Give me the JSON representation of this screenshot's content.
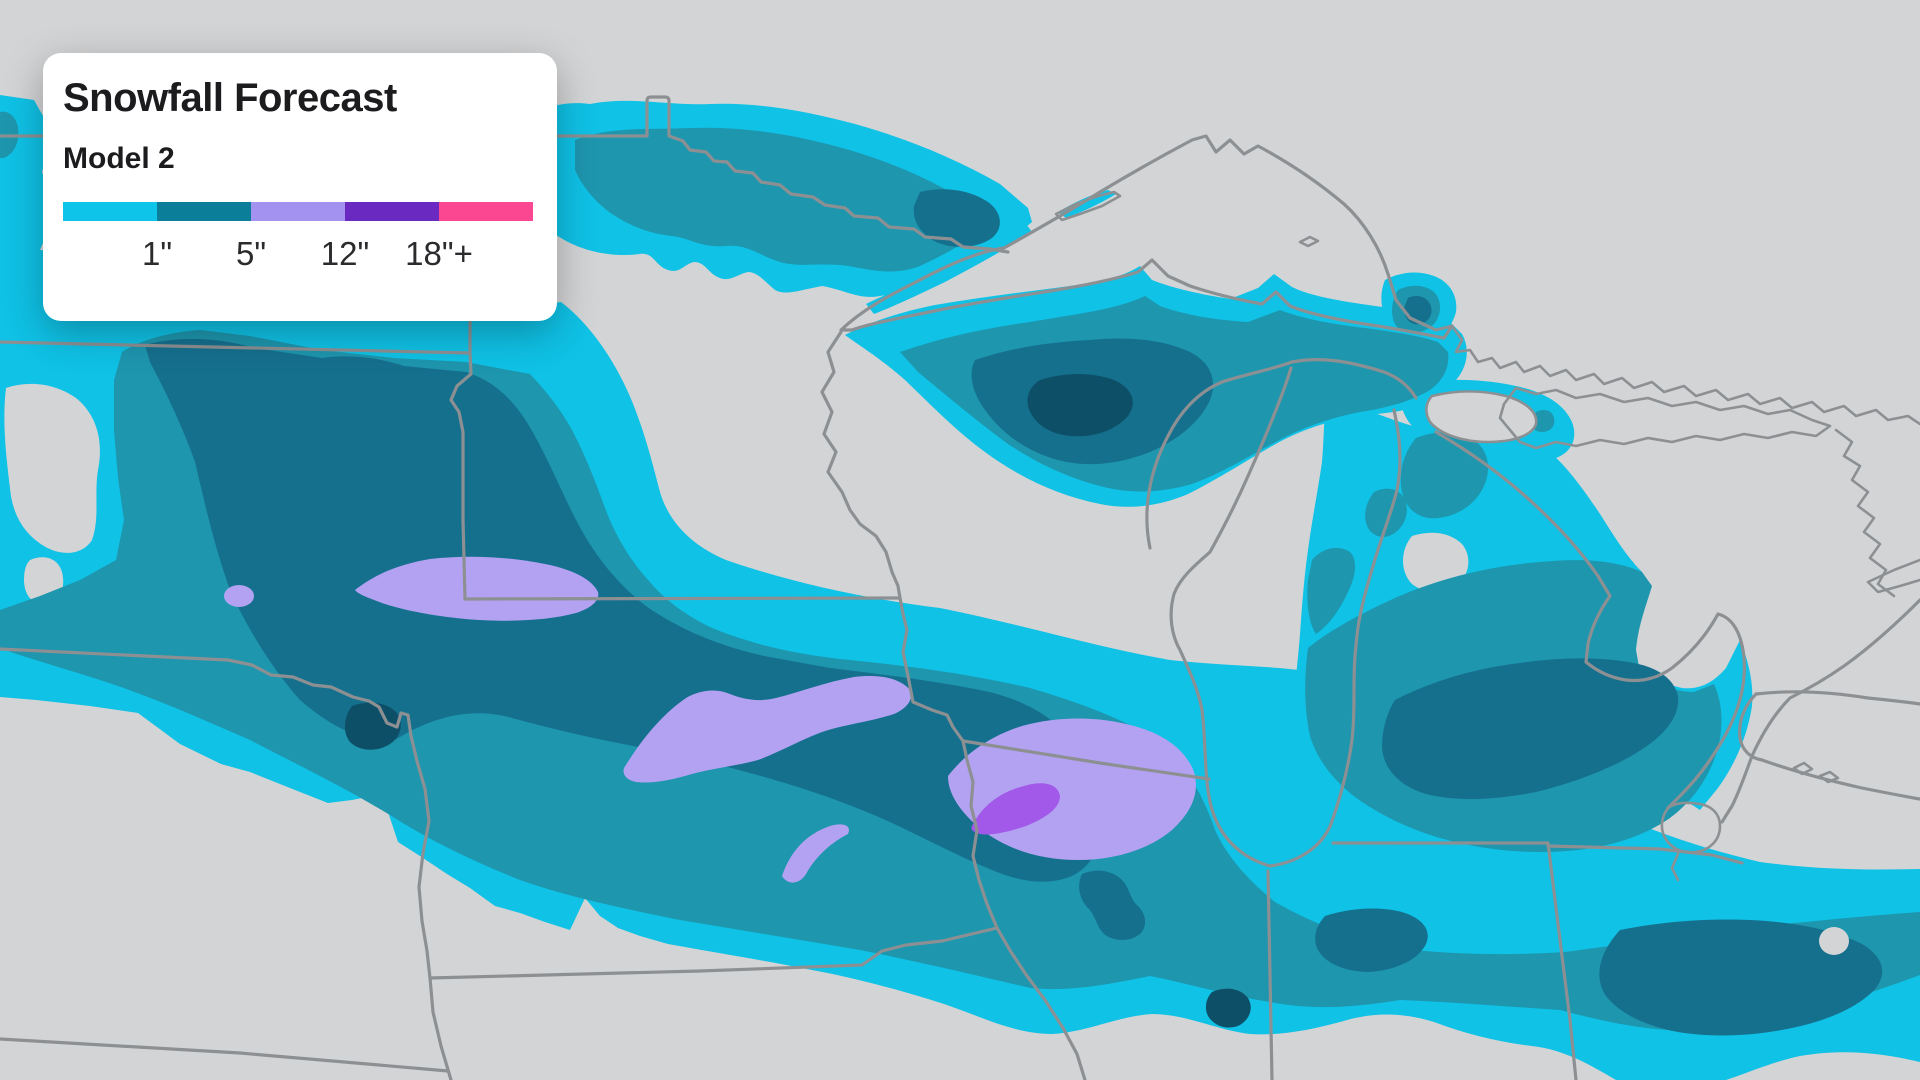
{
  "legend_card": {
    "title": "Snowfall Forecast",
    "subtitle": "Model 2",
    "scale": {
      "segments": [
        {
          "name": "level-1in",
          "color": "#0ec5e9"
        },
        {
          "name": "level-5in",
          "color": "#0b7f99"
        },
        {
          "name": "level-12in",
          "color": "#a392f0"
        },
        {
          "name": "level-18in",
          "color": "#6a29c1"
        },
        {
          "name": "level-max",
          "color": "#fb4792"
        }
      ],
      "tick_labels": [
        {
          "text": "1\"",
          "percent": 20
        },
        {
          "text": "5\"",
          "percent": 40
        },
        {
          "text": "12\"",
          "percent": 60
        },
        {
          "text": "18\"+",
          "percent": 80
        }
      ]
    }
  },
  "map": {
    "background_color": "#d3d4d5",
    "border_color": "#8d9093",
    "snow_levels": {
      "cyan": "#0fc2e6",
      "teal": "#1e96ae",
      "teal_dark": "#15708e",
      "navy": "#0e4f68",
      "purple_light": "#b3a2f2",
      "purple_mid": "#a258e8"
    }
  }
}
